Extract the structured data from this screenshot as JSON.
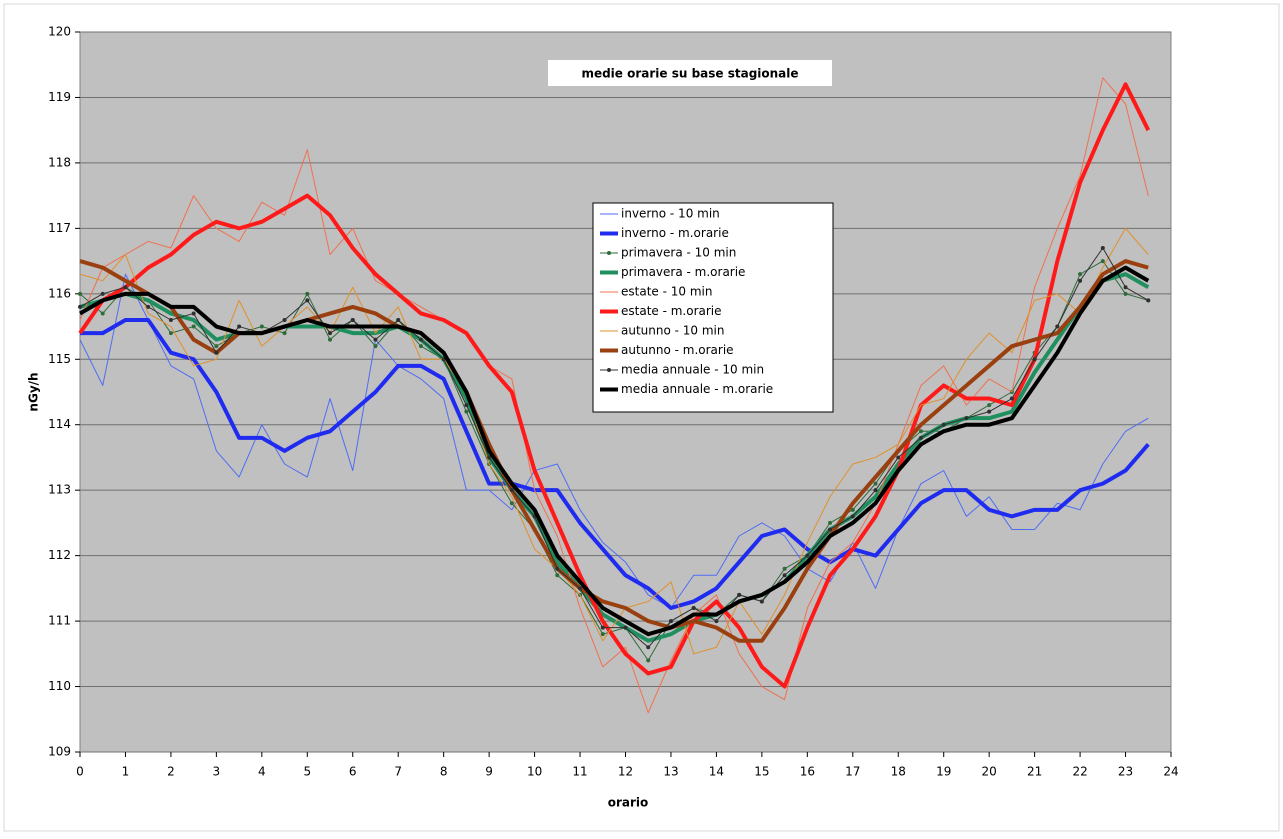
{
  "chart_data": {
    "type": "line",
    "title": "medie orarie su base stagionale",
    "x_label": "orario",
    "y_label": "nGy/h",
    "x": [
      0,
      0.5,
      1,
      1.5,
      2,
      2.5,
      3,
      3.5,
      4,
      4.5,
      5,
      5.5,
      6,
      6.5,
      7,
      7.5,
      8,
      8.5,
      9,
      9.5,
      10,
      10.5,
      11,
      11.5,
      12,
      12.5,
      13,
      13.5,
      14,
      14.5,
      15,
      15.5,
      16,
      16.5,
      17,
      17.5,
      18,
      18.5,
      19,
      19.5,
      20,
      20.5,
      21,
      21.5,
      22,
      22.5,
      23,
      23.5
    ],
    "xlim": [
      0,
      24
    ],
    "xticks": [
      0,
      1,
      2,
      3,
      4,
      5,
      6,
      7,
      8,
      9,
      10,
      11,
      12,
      13,
      14,
      15,
      16,
      17,
      18,
      19,
      20,
      21,
      22,
      23,
      24
    ],
    "ylim": [
      109,
      120
    ],
    "yticks": [
      109,
      110,
      111,
      112,
      113,
      114,
      115,
      116,
      117,
      118,
      119,
      120
    ],
    "grid": true,
    "series": [
      {
        "name": "inverno - 10 min",
        "color": "#4f6cf5",
        "line_width": 1,
        "marker": false,
        "values": [
          115.3,
          114.6,
          116.3,
          115.6,
          114.9,
          114.7,
          113.6,
          113.2,
          114.0,
          113.4,
          113.2,
          114.4,
          113.3,
          115.3,
          114.9,
          114.7,
          114.4,
          113.0,
          113.0,
          112.7,
          113.3,
          113.4,
          112.7,
          112.2,
          111.9,
          111.4,
          111.2,
          111.7,
          111.7,
          112.3,
          112.5,
          112.3,
          111.8,
          111.6,
          112.2,
          111.5,
          112.4,
          113.1,
          113.3,
          112.6,
          112.9,
          112.4,
          112.4,
          112.8,
          112.7,
          113.4,
          113.9,
          114.1
        ]
      },
      {
        "name": "inverno - m.orarie",
        "color": "#1f2cf0",
        "line_width": 4,
        "marker": false,
        "values": [
          115.4,
          115.4,
          115.6,
          115.6,
          115.1,
          115.0,
          114.5,
          113.8,
          113.8,
          113.6,
          113.8,
          113.9,
          114.2,
          114.5,
          114.9,
          114.9,
          114.7,
          113.9,
          113.1,
          113.1,
          113.0,
          113.0,
          112.5,
          112.1,
          111.7,
          111.5,
          111.2,
          111.3,
          111.5,
          111.9,
          112.3,
          112.4,
          112.1,
          111.9,
          112.1,
          112.0,
          112.4,
          112.8,
          113.0,
          113.0,
          112.7,
          112.6,
          112.7,
          112.7,
          113.0,
          113.1,
          113.3,
          113.7
        ]
      },
      {
        "name": "primavera - 10 min",
        "color": "#2e6b3a",
        "line_width": 1,
        "marker": true,
        "values": [
          116.0,
          115.7,
          116.1,
          115.9,
          115.4,
          115.5,
          115.2,
          115.4,
          115.5,
          115.4,
          116.0,
          115.3,
          115.6,
          115.2,
          115.6,
          115.2,
          115.0,
          114.2,
          113.4,
          112.8,
          112.4,
          111.7,
          111.4,
          110.8,
          110.9,
          110.4,
          111.0,
          111.2,
          111.1,
          111.4,
          111.3,
          111.8,
          112.0,
          112.5,
          112.7,
          113.1,
          113.6,
          113.9,
          113.9,
          114.1,
          114.3,
          114.5,
          115.1,
          115.5,
          116.3,
          116.5,
          116.0,
          115.9
        ]
      },
      {
        "name": "primavera - m.orarie",
        "color": "#1f8f5f",
        "line_width": 4,
        "marker": false,
        "values": [
          115.8,
          115.9,
          116.0,
          115.9,
          115.7,
          115.6,
          115.3,
          115.4,
          115.4,
          115.5,
          115.5,
          115.5,
          115.4,
          115.4,
          115.5,
          115.3,
          115.0,
          114.4,
          113.5,
          113.0,
          112.6,
          111.9,
          111.5,
          111.1,
          110.9,
          110.7,
          110.8,
          111.0,
          111.1,
          111.3,
          111.4,
          111.6,
          112.0,
          112.4,
          112.6,
          112.9,
          113.4,
          113.8,
          114.0,
          114.1,
          114.1,
          114.2,
          114.8,
          115.3,
          115.8,
          116.2,
          116.3,
          116.1
        ]
      },
      {
        "name": "estate - 10 min",
        "color": "#f07050",
        "line_width": 1,
        "marker": false,
        "values": [
          115.6,
          116.4,
          116.6,
          116.8,
          116.7,
          117.5,
          117.0,
          116.8,
          117.4,
          117.2,
          118.2,
          116.6,
          117.0,
          116.2,
          116.0,
          115.8,
          115.6,
          115.4,
          114.9,
          114.7,
          113.0,
          112.3,
          111.2,
          110.3,
          110.6,
          109.6,
          110.4,
          111.1,
          111.4,
          110.5,
          110.0,
          109.8,
          111.2,
          111.9,
          112.2,
          112.8,
          113.7,
          114.6,
          114.9,
          114.3,
          114.7,
          114.5,
          116.1,
          117.0,
          117.8,
          119.3,
          118.9,
          117.5
        ]
      },
      {
        "name": "estate - m.orarie",
        "color": "#ff1a1a",
        "line_width": 4,
        "marker": false,
        "values": [
          115.4,
          115.9,
          116.1,
          116.4,
          116.6,
          116.9,
          117.1,
          117.0,
          117.1,
          117.3,
          117.5,
          117.2,
          116.7,
          116.3,
          116.0,
          115.7,
          115.6,
          115.4,
          114.9,
          114.5,
          113.3,
          112.5,
          111.7,
          111.0,
          110.5,
          110.2,
          110.3,
          111.0,
          111.3,
          110.9,
          110.3,
          110.0,
          110.9,
          111.7,
          112.1,
          112.6,
          113.3,
          114.3,
          114.6,
          114.4,
          114.4,
          114.3,
          115.0,
          116.5,
          117.7,
          118.5,
          119.2,
          118.5
        ]
      },
      {
        "name": "autunno - 10 min",
        "color": "#e0902a",
        "line_width": 1,
        "marker": false,
        "values": [
          116.3,
          116.2,
          116.6,
          115.7,
          115.5,
          114.9,
          115.0,
          115.9,
          115.2,
          115.5,
          115.8,
          115.4,
          116.1,
          115.4,
          115.8,
          115.0,
          115.0,
          114.5,
          113.4,
          112.9,
          112.1,
          111.8,
          111.4,
          110.7,
          111.2,
          111.3,
          111.6,
          110.5,
          110.6,
          111.3,
          110.8,
          111.4,
          112.2,
          112.9,
          113.4,
          113.5,
          113.7,
          114.3,
          114.4,
          115.0,
          115.4,
          115.1,
          115.9,
          116.0,
          115.7,
          116.4,
          117.0,
          116.6
        ]
      },
      {
        "name": "autunno - m.orarie",
        "color": "#9a4010",
        "line_width": 4,
        "marker": false,
        "values": [
          116.5,
          116.4,
          116.2,
          116.0,
          115.8,
          115.3,
          115.1,
          115.4,
          115.4,
          115.5,
          115.6,
          115.7,
          115.8,
          115.7,
          115.5,
          115.4,
          115.1,
          114.5,
          113.7,
          113.0,
          112.4,
          111.8,
          111.5,
          111.3,
          111.2,
          111.0,
          110.9,
          111.0,
          110.9,
          110.7,
          110.7,
          111.2,
          111.8,
          112.3,
          112.8,
          113.2,
          113.6,
          114.0,
          114.3,
          114.6,
          114.9,
          115.2,
          115.3,
          115.4,
          115.8,
          116.3,
          116.5,
          116.4
        ]
      },
      {
        "name": "media annuale - 10 min",
        "color": "#303030",
        "line_width": 1,
        "marker": true,
        "values": [
          115.8,
          116.0,
          116.1,
          115.8,
          115.6,
          115.7,
          115.1,
          115.5,
          115.4,
          115.6,
          115.9,
          115.4,
          115.6,
          115.3,
          115.6,
          115.3,
          115.0,
          114.3,
          113.5,
          113.0,
          112.6,
          111.8,
          111.5,
          110.9,
          110.9,
          110.6,
          111.0,
          111.2,
          111.0,
          111.4,
          111.3,
          111.7,
          112.0,
          112.4,
          112.6,
          113.0,
          113.5,
          113.8,
          114.0,
          114.1,
          114.2,
          114.4,
          115.0,
          115.5,
          116.2,
          116.7,
          116.1,
          115.9
        ]
      },
      {
        "name": "media annuale - m.orarie",
        "color": "#000000",
        "line_width": 4,
        "marker": false,
        "values": [
          115.7,
          115.9,
          116.0,
          116.0,
          115.8,
          115.8,
          115.5,
          115.4,
          115.4,
          115.5,
          115.6,
          115.5,
          115.5,
          115.5,
          115.5,
          115.4,
          115.1,
          114.5,
          113.6,
          113.1,
          112.7,
          112.0,
          111.6,
          111.2,
          111.0,
          110.8,
          110.9,
          111.1,
          111.1,
          111.3,
          111.4,
          111.6,
          111.9,
          112.3,
          112.5,
          112.8,
          113.3,
          113.7,
          113.9,
          114.0,
          114.0,
          114.1,
          114.6,
          115.1,
          115.7,
          116.2,
          116.4,
          116.2
        ]
      }
    ]
  }
}
